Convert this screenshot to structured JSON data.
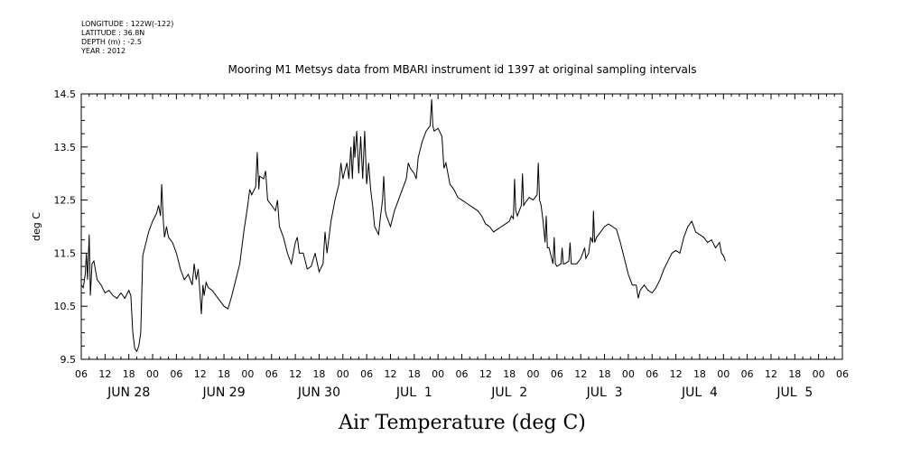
{
  "header": {
    "longitude": "LONGITUDE : 122W(-122)",
    "latitude": "LATITUDE : 36.8N",
    "depth": "DEPTH (m) : -2.5",
    "year": "YEAR : 2012"
  },
  "chart_data": {
    "type": "line",
    "title": "Mooring M1 Metsys data from MBARI instrument id 1397 at original sampling intervals",
    "bottom_title": "Air Temperature (deg C)",
    "ylabel": "deg C",
    "ylim": [
      9.5,
      14.5
    ],
    "y_ticks": [
      "9.5",
      "10.5",
      "11.5",
      "12.5",
      "13.5",
      "14.5"
    ],
    "xlim_hours": [
      0,
      192
    ],
    "x_hour_ticks": [
      "06",
      "12",
      "18",
      "00",
      "06",
      "12",
      "18",
      "00",
      "06",
      "12",
      "18",
      "00",
      "06",
      "12",
      "18",
      "00",
      "06",
      "12",
      "18",
      "00",
      "06",
      "12",
      "18",
      "00",
      "06",
      "12",
      "18",
      "00",
      "06",
      "12",
      "18",
      "00",
      "06"
    ],
    "date_labels": [
      {
        "label": "JUN 28",
        "hour": 12
      },
      {
        "label": "JUN 29",
        "hour": 36
      },
      {
        "label": "JUN 30",
        "hour": 60
      },
      {
        "label": "JUL  1",
        "hour": 84
      },
      {
        "label": "JUL  2",
        "hour": 108
      },
      {
        "label": "JUL  3",
        "hour": 132
      },
      {
        "label": "JUL  4",
        "hour": 156
      },
      {
        "label": "JUL  5",
        "hour": 180
      }
    ],
    "series": [
      {
        "values": [
          [
            0,
            10.9
          ],
          [
            0.5,
            10.85
          ],
          [
            1,
            11.1
          ],
          [
            1.3,
            11.5
          ],
          [
            1.6,
            11.0
          ],
          [
            2,
            11.85
          ],
          [
            2.3,
            10.7
          ],
          [
            2.7,
            11.3
          ],
          [
            3.2,
            11.35
          ],
          [
            4,
            11.0
          ],
          [
            5,
            10.9
          ],
          [
            6,
            10.75
          ],
          [
            7,
            10.8
          ],
          [
            8,
            10.7
          ],
          [
            9,
            10.65
          ],
          [
            10,
            10.75
          ],
          [
            11,
            10.65
          ],
          [
            12,
            10.8
          ],
          [
            12.5,
            10.7
          ],
          [
            13,
            10.0
          ],
          [
            13.5,
            9.7
          ],
          [
            14,
            9.65
          ],
          [
            14.5,
            9.75
          ],
          [
            15,
            10.0
          ],
          [
            15.5,
            11.45
          ],
          [
            16,
            11.6
          ],
          [
            17,
            11.9
          ],
          [
            18,
            12.1
          ],
          [
            19,
            12.25
          ],
          [
            19.5,
            12.4
          ],
          [
            20,
            12.2
          ],
          [
            20.3,
            12.8
          ],
          [
            20.7,
            12.1
          ],
          [
            21,
            11.8
          ],
          [
            21.5,
            12.0
          ],
          [
            22,
            11.8
          ],
          [
            23,
            11.7
          ],
          [
            24,
            11.5
          ],
          [
            25,
            11.2
          ],
          [
            26,
            11.0
          ],
          [
            27,
            11.1
          ],
          [
            28,
            10.9
          ],
          [
            28.5,
            11.3
          ],
          [
            29,
            11.0
          ],
          [
            29.5,
            11.2
          ],
          [
            30,
            10.7
          ],
          [
            30.3,
            10.35
          ],
          [
            30.7,
            10.9
          ],
          [
            31,
            10.7
          ],
          [
            31.5,
            10.95
          ],
          [
            32,
            10.85
          ],
          [
            33,
            10.8
          ],
          [
            34,
            10.7
          ],
          [
            35,
            10.6
          ],
          [
            36,
            10.5
          ],
          [
            37,
            10.45
          ],
          [
            38,
            10.7
          ],
          [
            39,
            11.0
          ],
          [
            40,
            11.3
          ],
          [
            41,
            11.9
          ],
          [
            42,
            12.4
          ],
          [
            42.5,
            12.7
          ],
          [
            43,
            12.6
          ],
          [
            44,
            12.75
          ],
          [
            44.4,
            13.4
          ],
          [
            44.8,
            12.7
          ],
          [
            45,
            12.95
          ],
          [
            46,
            12.9
          ],
          [
            46.5,
            13.05
          ],
          [
            47,
            12.5
          ],
          [
            48,
            12.4
          ],
          [
            49,
            12.3
          ],
          [
            49.5,
            12.5
          ],
          [
            50,
            12.0
          ],
          [
            51,
            11.8
          ],
          [
            52,
            11.5
          ],
          [
            53,
            11.3
          ],
          [
            54,
            11.7
          ],
          [
            54.5,
            11.8
          ],
          [
            55,
            11.5
          ],
          [
            56,
            11.5
          ],
          [
            57,
            11.2
          ],
          [
            58,
            11.25
          ],
          [
            59,
            11.5
          ],
          [
            60,
            11.15
          ],
          [
            61,
            11.3
          ],
          [
            61.5,
            11.9
          ],
          [
            62,
            11.5
          ],
          [
            63,
            12.1
          ],
          [
            64,
            12.5
          ],
          [
            65,
            12.8
          ],
          [
            65.5,
            13.2
          ],
          [
            66,
            12.9
          ],
          [
            67,
            13.2
          ],
          [
            67.5,
            12.9
          ],
          [
            68,
            13.5
          ],
          [
            68.4,
            12.9
          ],
          [
            68.8,
            13.7
          ],
          [
            69,
            13.3
          ],
          [
            69.5,
            13.8
          ],
          [
            70,
            13.0
          ],
          [
            70.5,
            13.7
          ],
          [
            71,
            12.9
          ],
          [
            71.5,
            13.8
          ],
          [
            72,
            12.8
          ],
          [
            72.5,
            13.2
          ],
          [
            73,
            12.7
          ],
          [
            73.5,
            12.4
          ],
          [
            74,
            12.0
          ],
          [
            75,
            11.85
          ],
          [
            75.5,
            12.2
          ],
          [
            76,
            12.5
          ],
          [
            76.3,
            12.95
          ],
          [
            76.7,
            12.3
          ],
          [
            77,
            12.2
          ],
          [
            78,
            12.0
          ],
          [
            79,
            12.3
          ],
          [
            80,
            12.5
          ],
          [
            81,
            12.7
          ],
          [
            82,
            12.9
          ],
          [
            82.5,
            13.2
          ],
          [
            83,
            13.1
          ],
          [
            84,
            13.0
          ],
          [
            84.5,
            12.9
          ],
          [
            85,
            13.3
          ],
          [
            86,
            13.6
          ],
          [
            87,
            13.8
          ],
          [
            88,
            13.9
          ],
          [
            88.4,
            14.4
          ],
          [
            88.7,
            13.9
          ],
          [
            89,
            13.8
          ],
          [
            90,
            13.85
          ],
          [
            91,
            13.7
          ],
          [
            91.5,
            13.1
          ],
          [
            92,
            13.2
          ],
          [
            93,
            12.8
          ],
          [
            94,
            12.7
          ],
          [
            95,
            12.55
          ],
          [
            96,
            12.5
          ],
          [
            97,
            12.45
          ],
          [
            98,
            12.4
          ],
          [
            99,
            12.35
          ],
          [
            100,
            12.3
          ],
          [
            101,
            12.2
          ],
          [
            102,
            12.05
          ],
          [
            103,
            12.0
          ],
          [
            104,
            11.9
          ],
          [
            105,
            11.95
          ],
          [
            106,
            12.0
          ],
          [
            107,
            12.05
          ],
          [
            108,
            12.1
          ],
          [
            108.5,
            12.2
          ],
          [
            109,
            12.15
          ],
          [
            109.3,
            12.9
          ],
          [
            109.6,
            12.3
          ],
          [
            110,
            12.2
          ],
          [
            111,
            12.4
          ],
          [
            111.3,
            13.0
          ],
          [
            111.6,
            12.4
          ],
          [
            112,
            12.45
          ],
          [
            113,
            12.55
          ],
          [
            114,
            12.5
          ],
          [
            115,
            12.6
          ],
          [
            115.3,
            13.2
          ],
          [
            115.6,
            12.5
          ],
          [
            116,
            12.4
          ],
          [
            116.5,
            12.1
          ],
          [
            117,
            11.7
          ],
          [
            117.3,
            12.2
          ],
          [
            117.6,
            11.6
          ],
          [
            118,
            11.6
          ],
          [
            119,
            11.3
          ],
          [
            119.3,
            11.8
          ],
          [
            119.6,
            11.3
          ],
          [
            120,
            11.25
          ],
          [
            121,
            11.3
          ],
          [
            121.3,
            11.6
          ],
          [
            121.6,
            11.3
          ],
          [
            122,
            11.3
          ],
          [
            123,
            11.35
          ],
          [
            123.3,
            11.7
          ],
          [
            123.6,
            11.3
          ],
          [
            124,
            11.3
          ],
          [
            125,
            11.3
          ],
          [
            126,
            11.4
          ],
          [
            127,
            11.6
          ],
          [
            127.3,
            11.4
          ],
          [
            128,
            11.5
          ],
          [
            128.5,
            11.8
          ],
          [
            129,
            11.7
          ],
          [
            129.2,
            12.3
          ],
          [
            129.5,
            11.7
          ],
          [
            130,
            11.8
          ],
          [
            131,
            11.9
          ],
          [
            132,
            12.0
          ],
          [
            133,
            12.05
          ],
          [
            134,
            12.0
          ],
          [
            135,
            11.95
          ],
          [
            136,
            11.7
          ],
          [
            137,
            11.4
          ],
          [
            138,
            11.1
          ],
          [
            139,
            10.9
          ],
          [
            140,
            10.9
          ],
          [
            140.5,
            10.65
          ],
          [
            141,
            10.8
          ],
          [
            142,
            10.9
          ],
          [
            143,
            10.8
          ],
          [
            144,
            10.75
          ],
          [
            145,
            10.85
          ],
          [
            146,
            11.0
          ],
          [
            147,
            11.2
          ],
          [
            148,
            11.35
          ],
          [
            149,
            11.5
          ],
          [
            150,
            11.55
          ],
          [
            151,
            11.5
          ],
          [
            152,
            11.8
          ],
          [
            153,
            12.0
          ],
          [
            154,
            12.1
          ],
          [
            155,
            11.9
          ],
          [
            156,
            11.85
          ],
          [
            157,
            11.8
          ],
          [
            158,
            11.7
          ],
          [
            159,
            11.75
          ],
          [
            160,
            11.6
          ],
          [
            161,
            11.7
          ],
          [
            161.5,
            11.5
          ],
          [
            162,
            11.45
          ],
          [
            162.5,
            11.35
          ]
        ]
      }
    ]
  }
}
